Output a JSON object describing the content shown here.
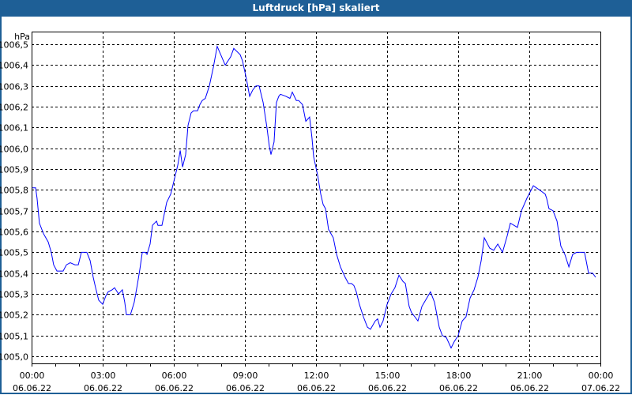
{
  "title": "Luftdruck [hPa] skaliert",
  "colors": {
    "title_bar": "#1e5f96",
    "line": "#0000ff",
    "grid": "#000000"
  },
  "chart_data": {
    "type": "line",
    "title": "Luftdruck [hPa] skaliert",
    "ylabel": "hPa",
    "xlabel": "",
    "xlim": [
      0,
      24
    ],
    "ylim": [
      1004.966,
      1006.561
    ],
    "grid": true,
    "yticks": [
      {
        "value": 1005.0,
        "label": "1005,0"
      },
      {
        "value": 1005.1,
        "label": "1005,1"
      },
      {
        "value": 1005.2,
        "label": "1005,2"
      },
      {
        "value": 1005.3,
        "label": "1005,3"
      },
      {
        "value": 1005.4,
        "label": "1005,4"
      },
      {
        "value": 1005.5,
        "label": "1005,5"
      },
      {
        "value": 1005.6,
        "label": "1005,6"
      },
      {
        "value": 1005.7,
        "label": "1005,7"
      },
      {
        "value": 1005.8,
        "label": "1005,8"
      },
      {
        "value": 1005.9,
        "label": "1005,9"
      },
      {
        "value": 1006.0,
        "label": "1006,0"
      },
      {
        "value": 1006.1,
        "label": "1006,1"
      },
      {
        "value": 1006.2,
        "label": "1006,2"
      },
      {
        "value": 1006.3,
        "label": "1006,3"
      },
      {
        "value": 1006.4,
        "label": "1006,4"
      },
      {
        "value": 1006.5,
        "label": "1006,5"
      }
    ],
    "xticks": [
      {
        "value": 0,
        "time": "00:00",
        "date": "06.06.22"
      },
      {
        "value": 3,
        "time": "03:00",
        "date": "06.06.22"
      },
      {
        "value": 6,
        "time": "06:00",
        "date": "06.06.22"
      },
      {
        "value": 9,
        "time": "09:00",
        "date": "06.06.22"
      },
      {
        "value": 12,
        "time": "12:00",
        "date": "06.06.22"
      },
      {
        "value": 15,
        "time": "15:00",
        "date": "06.06.22"
      },
      {
        "value": 18,
        "time": "18:00",
        "date": "06.06.22"
      },
      {
        "value": 21,
        "time": "21:00",
        "date": "06.06.22"
      },
      {
        "value": 24,
        "time": "00:00",
        "date": "07.06.22"
      }
    ],
    "series": [
      {
        "name": "Luftdruck",
        "x": [
          0.03,
          0.17,
          0.23,
          0.33,
          0.5,
          0.7,
          0.83,
          0.93,
          1.07,
          1.23,
          1.33,
          1.47,
          1.63,
          1.83,
          1.97,
          2.1,
          2.23,
          2.33,
          2.47,
          2.6,
          2.7,
          2.83,
          3.0,
          3.13,
          3.23,
          3.4,
          3.5,
          3.67,
          3.83,
          3.93,
          4.0,
          4.17,
          4.33,
          4.47,
          4.57,
          4.67,
          4.8,
          4.87,
          5.0,
          5.1,
          5.27,
          5.33,
          5.5,
          5.7,
          5.87,
          6.0,
          6.17,
          6.27,
          6.37,
          6.5,
          6.6,
          6.73,
          6.83,
          7.0,
          7.1,
          7.2,
          7.33,
          7.5,
          7.67,
          7.83,
          8.17,
          8.4,
          8.53,
          8.8,
          8.9,
          9.07,
          9.2,
          9.33,
          9.47,
          9.6,
          9.77,
          9.93,
          10.03,
          10.1,
          10.23,
          10.33,
          10.43,
          10.5,
          10.73,
          10.9,
          11.0,
          11.17,
          11.27,
          11.43,
          11.57,
          11.73,
          11.83,
          11.9,
          12.07,
          12.2,
          12.3,
          12.4,
          12.53,
          12.73,
          12.87,
          13.03,
          13.23,
          13.37,
          13.5,
          13.6,
          13.7,
          13.83,
          14.0,
          14.17,
          14.3,
          14.5,
          14.6,
          14.7,
          14.83,
          15.0,
          15.17,
          15.33,
          15.5,
          15.67,
          15.77,
          15.93,
          16.03,
          16.17,
          16.3,
          16.47,
          16.83,
          17.0,
          17.1,
          17.2,
          17.33,
          17.5,
          17.7,
          17.83,
          18.0,
          18.17,
          18.33,
          18.5,
          18.67,
          18.83,
          18.97,
          19.1,
          19.33,
          19.5,
          19.67,
          19.87,
          20.07,
          20.2,
          20.5,
          20.67,
          20.9,
          21.17,
          21.43,
          21.67,
          21.73,
          21.83,
          22.0,
          22.17,
          22.33,
          22.5,
          22.67,
          22.83,
          23.0,
          23.33,
          23.5,
          23.67,
          23.8
        ],
        "y": [
          1005.81,
          1005.81,
          1005.76,
          1005.64,
          1005.59,
          1005.55,
          1005.5,
          1005.44,
          1005.41,
          1005.41,
          1005.41,
          1005.44,
          1005.45,
          1005.44,
          1005.44,
          1005.5,
          1005.5,
          1005.5,
          1005.46,
          1005.38,
          1005.33,
          1005.27,
          1005.25,
          1005.29,
          1005.31,
          1005.32,
          1005.33,
          1005.3,
          1005.32,
          1005.26,
          1005.2,
          1005.2,
          1005.26,
          1005.35,
          1005.42,
          1005.5,
          1005.5,
          1005.49,
          1005.54,
          1005.63,
          1005.65,
          1005.63,
          1005.63,
          1005.74,
          1005.78,
          1005.84,
          1005.92,
          1005.99,
          1005.91,
          1005.97,
          1006.11,
          1006.17,
          1006.18,
          1006.18,
          1006.21,
          1006.23,
          1006.24,
          1006.3,
          1006.39,
          1006.49,
          1006.4,
          1006.44,
          1006.48,
          1006.45,
          1006.42,
          1006.33,
          1006.25,
          1006.28,
          1006.3,
          1006.3,
          1006.22,
          1006.1,
          1006.01,
          1005.97,
          1006.03,
          1006.22,
          1006.25,
          1006.26,
          1006.25,
          1006.24,
          1006.27,
          1006.23,
          1006.23,
          1006.21,
          1006.13,
          1006.15,
          1006.05,
          1005.96,
          1005.87,
          1005.78,
          1005.73,
          1005.71,
          1005.61,
          1005.57,
          1005.49,
          1005.43,
          1005.38,
          1005.35,
          1005.35,
          1005.34,
          1005.31,
          1005.25,
          1005.19,
          1005.14,
          1005.13,
          1005.17,
          1005.18,
          1005.14,
          1005.17,
          1005.25,
          1005.3,
          1005.33,
          1005.39,
          1005.36,
          1005.35,
          1005.24,
          1005.21,
          1005.19,
          1005.17,
          1005.24,
          1005.31,
          1005.26,
          1005.2,
          1005.14,
          1005.1,
          1005.09,
          1005.04,
          1005.07,
          1005.1,
          1005.17,
          1005.19,
          1005.28,
          1005.32,
          1005.38,
          1005.46,
          1005.57,
          1005.52,
          1005.51,
          1005.54,
          1005.5,
          1005.58,
          1005.64,
          1005.62,
          1005.7,
          1005.76,
          1005.82,
          1005.8,
          1005.78,
          1005.76,
          1005.71,
          1005.7,
          1005.65,
          1005.53,
          1005.49,
          1005.43,
          1005.49,
          1005.5,
          1005.5,
          1005.4,
          1005.4,
          1005.38
        ]
      }
    ]
  }
}
